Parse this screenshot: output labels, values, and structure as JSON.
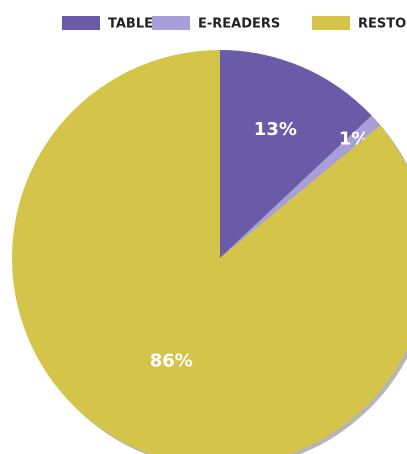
{
  "chart_data": {
    "type": "pie",
    "categories": [
      "TABLETS",
      "E-READERS",
      "RESTO"
    ],
    "values": [
      13,
      1,
      86
    ],
    "value_labels": [
      "13%",
      "1%",
      "86%"
    ],
    "colors": [
      "#6a5ba8",
      "#a99fd8",
      "#d4c54a"
    ],
    "legend": "top"
  }
}
